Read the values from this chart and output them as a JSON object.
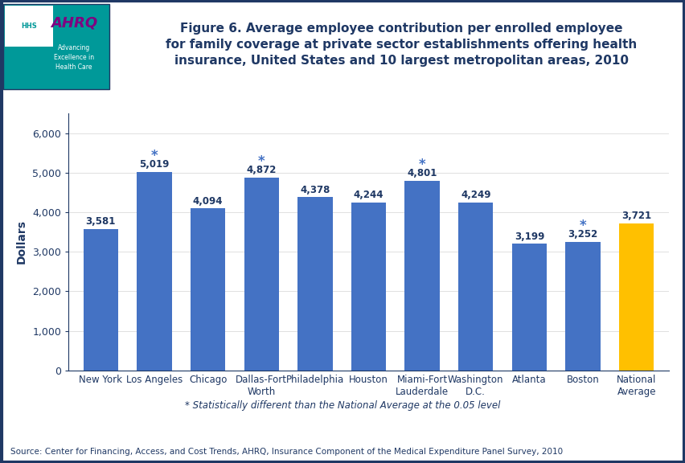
{
  "categories": [
    "New York",
    "Los Angeles",
    "Chicago",
    "Dallas-Fort\nWorth",
    "Philadelphia",
    "Houston",
    "Miami-Fort\nLauderdale",
    "Washington\nD.C.",
    "Atlanta",
    "Boston",
    "National\nAverage"
  ],
  "values": [
    3581,
    5019,
    4094,
    4872,
    4378,
    4244,
    4801,
    4249,
    3199,
    3252,
    3721
  ],
  "bar_colors": [
    "#4472C4",
    "#4472C4",
    "#4472C4",
    "#4472C4",
    "#4472C4",
    "#4472C4",
    "#4472C4",
    "#4472C4",
    "#4472C4",
    "#4472C4",
    "#FFC000"
  ],
  "statistically_different": [
    false,
    true,
    false,
    true,
    false,
    false,
    true,
    false,
    false,
    true,
    false
  ],
  "value_labels": [
    "3,581",
    "5,019",
    "4,094",
    "4,872",
    "4,378",
    "4,244",
    "4,801",
    "4,249",
    "3,199",
    "3,252",
    "3,721"
  ],
  "ylabel": "Dollars",
  "ylim": [
    0,
    6500
  ],
  "yticks": [
    0,
    1000,
    2000,
    3000,
    4000,
    5000,
    6000
  ],
  "ytick_labels": [
    "0",
    "1,000",
    "2,000",
    "3,000",
    "4,000",
    "5,000",
    "6,000"
  ],
  "title_line1": "Figure 6. Average employee contribution per enrolled employee",
  "title_line2": "for family coverage at private sector establishments offering health",
  "title_line3": "insurance, United States and 10 largest metropolitan areas, 2010",
  "footnote": "* Statistically different than the National Average at the 0.05 level",
  "source": "Source: Center for Financing, Access, and Cost Trends, AHRQ, Insurance Component of the Medical Expenditure Panel Survey, 2010",
  "bar_label_color": "#1F3864",
  "axis_color": "#1F3864",
  "title_color": "#1F3864",
  "star_color": "#4472C4",
  "border_color": "#1F3864",
  "blue_line_color": "#1F3864",
  "footnote_color": "#1F3864",
  "source_color": "#1F3864",
  "teal_color": "#009999"
}
